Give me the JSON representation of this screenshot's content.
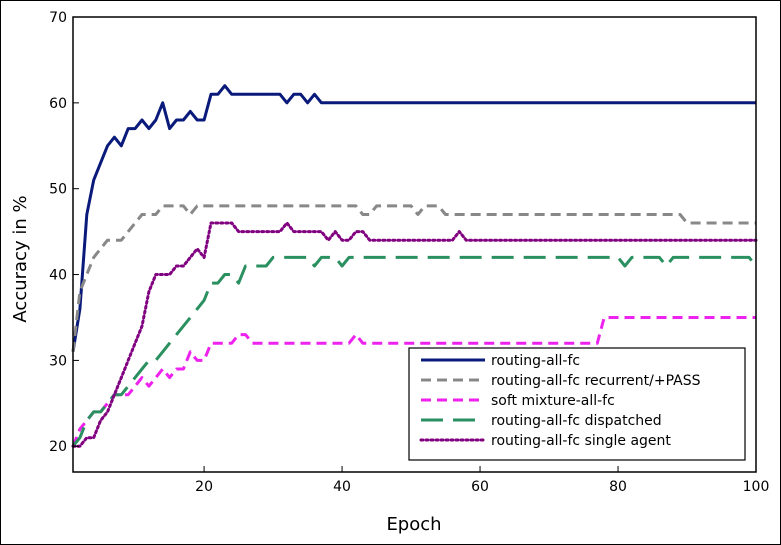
{
  "chart_data": {
    "type": "line",
    "title": "",
    "xlabel": "Epoch",
    "ylabel": "Accuracy in %",
    "xlim": [
      1,
      100
    ],
    "ylim": [
      17,
      70
    ],
    "xticks": [
      20,
      40,
      60,
      80,
      100
    ],
    "yticks": [
      20,
      30,
      40,
      50,
      60,
      70
    ],
    "grid": false,
    "legend_position": "bottom-right",
    "series": [
      {
        "name": "routing-all-fc",
        "color": "#0a1a7a",
        "dash": "solid",
        "points": [
          [
            1,
            31
          ],
          [
            2,
            36
          ],
          [
            3,
            47
          ],
          [
            4,
            51
          ],
          [
            5,
            53
          ],
          [
            6,
            55
          ],
          [
            7,
            56
          ],
          [
            8,
            55
          ],
          [
            9,
            57
          ],
          [
            10,
            57
          ],
          [
            11,
            58
          ],
          [
            12,
            57
          ],
          [
            13,
            58
          ],
          [
            14,
            60
          ],
          [
            15,
            57
          ],
          [
            16,
            58
          ],
          [
            17,
            58
          ],
          [
            18,
            59
          ],
          [
            19,
            58
          ],
          [
            20,
            58
          ],
          [
            21,
            61
          ],
          [
            22,
            61
          ],
          [
            23,
            62
          ],
          [
            24,
            61
          ],
          [
            25,
            61
          ],
          [
            26,
            61
          ],
          [
            27,
            61
          ],
          [
            28,
            61
          ],
          [
            29,
            61
          ],
          [
            30,
            61
          ],
          [
            31,
            61
          ],
          [
            32,
            60
          ],
          [
            33,
            61
          ],
          [
            34,
            61
          ],
          [
            35,
            60
          ],
          [
            36,
            61
          ],
          [
            37,
            60
          ],
          [
            38,
            60
          ],
          [
            40,
            60
          ],
          [
            50,
            60
          ],
          [
            60,
            60
          ],
          [
            70,
            60
          ],
          [
            80,
            60
          ],
          [
            90,
            60
          ],
          [
            100,
            60
          ]
        ]
      },
      {
        "name": "routing-all-fc recurrent/+PASS",
        "color": "#888888",
        "dash": "dashed",
        "points": [
          [
            1,
            31
          ],
          [
            2,
            38
          ],
          [
            3,
            40
          ],
          [
            4,
            42
          ],
          [
            5,
            43
          ],
          [
            6,
            44
          ],
          [
            7,
            44
          ],
          [
            8,
            44
          ],
          [
            9,
            45
          ],
          [
            10,
            46
          ],
          [
            11,
            47
          ],
          [
            12,
            47
          ],
          [
            13,
            47
          ],
          [
            14,
            48
          ],
          [
            15,
            48
          ],
          [
            16,
            48
          ],
          [
            17,
            48
          ],
          [
            18,
            47
          ],
          [
            19,
            48
          ],
          [
            20,
            48
          ],
          [
            25,
            48
          ],
          [
            30,
            48
          ],
          [
            35,
            48
          ],
          [
            40,
            48
          ],
          [
            42,
            48
          ],
          [
            43,
            47
          ],
          [
            44,
            47
          ],
          [
            45,
            48
          ],
          [
            50,
            48
          ],
          [
            51,
            47
          ],
          [
            52,
            48
          ],
          [
            53,
            48
          ],
          [
            54,
            48
          ],
          [
            55,
            47
          ],
          [
            60,
            47
          ],
          [
            70,
            47
          ],
          [
            80,
            47
          ],
          [
            85,
            47
          ],
          [
            89,
            47
          ],
          [
            90,
            46
          ],
          [
            95,
            46
          ],
          [
            100,
            46
          ]
        ]
      },
      {
        "name": "soft mixture-all-fc",
        "color": "#ee22ee",
        "dash": "dashed",
        "points": [
          [
            1,
            20
          ],
          [
            2,
            22
          ],
          [
            3,
            23
          ],
          [
            4,
            24
          ],
          [
            5,
            24
          ],
          [
            6,
            25
          ],
          [
            7,
            26
          ],
          [
            8,
            26
          ],
          [
            9,
            26
          ],
          [
            10,
            27
          ],
          [
            11,
            28
          ],
          [
            12,
            27
          ],
          [
            13,
            28
          ],
          [
            14,
            29
          ],
          [
            15,
            28
          ],
          [
            16,
            29
          ],
          [
            17,
            29
          ],
          [
            18,
            31
          ],
          [
            19,
            30
          ],
          [
            20,
            30
          ],
          [
            21,
            32
          ],
          [
            22,
            32
          ],
          [
            23,
            32
          ],
          [
            24,
            32
          ],
          [
            25,
            33
          ],
          [
            26,
            33
          ],
          [
            27,
            32
          ],
          [
            28,
            32
          ],
          [
            30,
            32
          ],
          [
            35,
            32
          ],
          [
            40,
            32
          ],
          [
            41,
            32
          ],
          [
            42,
            33
          ],
          [
            43,
            32
          ],
          [
            45,
            32
          ],
          [
            50,
            32
          ],
          [
            60,
            32
          ],
          [
            70,
            32
          ],
          [
            77,
            32
          ],
          [
            78,
            35
          ],
          [
            80,
            35
          ],
          [
            90,
            35
          ],
          [
            100,
            35
          ]
        ]
      },
      {
        "name": "routing-all-fc dispatched",
        "color": "#2a9060",
        "dash": "longdash",
        "points": [
          [
            1,
            20
          ],
          [
            2,
            21
          ],
          [
            3,
            23
          ],
          [
            4,
            24
          ],
          [
            5,
            24
          ],
          [
            6,
            25
          ],
          [
            7,
            26
          ],
          [
            8,
            26
          ],
          [
            9,
            27
          ],
          [
            10,
            28
          ],
          [
            11,
            29
          ],
          [
            12,
            30
          ],
          [
            13,
            30
          ],
          [
            14,
            31
          ],
          [
            15,
            32
          ],
          [
            16,
            33
          ],
          [
            17,
            34
          ],
          [
            18,
            35
          ],
          [
            19,
            36
          ],
          [
            20,
            37
          ],
          [
            21,
            39
          ],
          [
            22,
            39
          ],
          [
            23,
            40
          ],
          [
            24,
            40
          ],
          [
            25,
            39
          ],
          [
            26,
            41
          ],
          [
            27,
            41
          ],
          [
            28,
            41
          ],
          [
            29,
            41
          ],
          [
            30,
            42
          ],
          [
            31,
            42
          ],
          [
            32,
            42
          ],
          [
            33,
            42
          ],
          [
            34,
            42
          ],
          [
            35,
            42
          ],
          [
            36,
            41
          ],
          [
            37,
            42
          ],
          [
            38,
            42
          ],
          [
            39,
            42
          ],
          [
            40,
            41
          ],
          [
            41,
            42
          ],
          [
            42,
            42
          ],
          [
            50,
            42
          ],
          [
            60,
            42
          ],
          [
            70,
            42
          ],
          [
            80,
            42
          ],
          [
            81,
            41
          ],
          [
            82,
            42
          ],
          [
            85,
            42
          ],
          [
            86,
            42
          ],
          [
            87,
            41
          ],
          [
            88,
            42
          ],
          [
            95,
            42
          ],
          [
            99,
            42
          ],
          [
            100,
            41
          ]
        ]
      },
      {
        "name": "routing-all-fc single agent",
        "color": "#800080",
        "dash": "dotted",
        "points": [
          [
            1,
            20
          ],
          [
            2,
            20
          ],
          [
            3,
            21
          ],
          [
            4,
            21
          ],
          [
            5,
            23
          ],
          [
            6,
            24
          ],
          [
            7,
            26
          ],
          [
            8,
            28
          ],
          [
            9,
            30
          ],
          [
            10,
            32
          ],
          [
            11,
            34
          ],
          [
            12,
            38
          ],
          [
            13,
            40
          ],
          [
            14,
            40
          ],
          [
            15,
            40
          ],
          [
            16,
            41
          ],
          [
            17,
            41
          ],
          [
            18,
            42
          ],
          [
            19,
            43
          ],
          [
            20,
            42
          ],
          [
            21,
            46
          ],
          [
            22,
            46
          ],
          [
            23,
            46
          ],
          [
            24,
            46
          ],
          [
            25,
            45
          ],
          [
            26,
            45
          ],
          [
            27,
            45
          ],
          [
            28,
            45
          ],
          [
            29,
            45
          ],
          [
            30,
            45
          ],
          [
            31,
            45
          ],
          [
            32,
            46
          ],
          [
            33,
            45
          ],
          [
            34,
            45
          ],
          [
            35,
            45
          ],
          [
            36,
            45
          ],
          [
            37,
            45
          ],
          [
            38,
            44
          ],
          [
            39,
            45
          ],
          [
            40,
            44
          ],
          [
            41,
            44
          ],
          [
            42,
            45
          ],
          [
            43,
            45
          ],
          [
            44,
            44
          ],
          [
            50,
            44
          ],
          [
            55,
            44
          ],
          [
            56,
            44
          ],
          [
            57,
            45
          ],
          [
            58,
            44
          ],
          [
            60,
            44
          ],
          [
            70,
            44
          ],
          [
            80,
            44
          ],
          [
            90,
            44
          ],
          [
            100,
            44
          ]
        ]
      }
    ]
  }
}
